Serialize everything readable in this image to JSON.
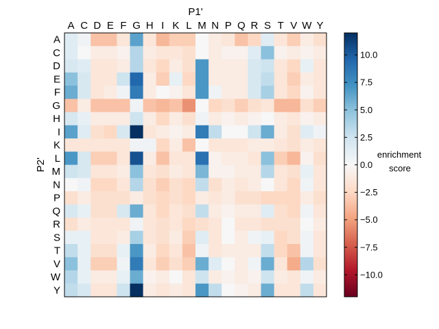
{
  "chart_data": {
    "type": "heatmap",
    "xlabel": "P1'",
    "ylabel": "P2'",
    "x_categories": [
      "A",
      "C",
      "D",
      "E",
      "F",
      "G",
      "H",
      "I",
      "K",
      "L",
      "M",
      "N",
      "P",
      "Q",
      "R",
      "S",
      "T",
      "V",
      "W",
      "Y"
    ],
    "y_categories": [
      "A",
      "C",
      "D",
      "E",
      "F",
      "G",
      "H",
      "I",
      "K",
      "L",
      "M",
      "N",
      "P",
      "Q",
      "R",
      "S",
      "T",
      "V",
      "W",
      "Y"
    ],
    "colorbar": {
      "label_line1": "enrichment",
      "label_line2": "score",
      "range": [
        -12,
        12
      ],
      "ticks": [
        10.0,
        7.5,
        5.0,
        2.5,
        0.0,
        -2.5,
        -5.0,
        -7.5,
        -10.0
      ],
      "tick_labels": [
        "10.0",
        "7.5",
        "5.0",
        "2.5",
        "0.0",
        "−2.5",
        "−5.0",
        "−7.5",
        "−10.0"
      ],
      "colormap": "RdBu_r"
    },
    "values": [
      [
        1.5,
        0.5,
        -3.5,
        -3.5,
        -1.5,
        6.5,
        -1.5,
        -4.0,
        -3.0,
        -3.0,
        0.0,
        -1.0,
        -1.5,
        -3.5,
        -2.5,
        1.5,
        -1.5,
        -3.0,
        -1.0,
        -2.0
      ],
      [
        1.5,
        0.0,
        -1.0,
        -1.0,
        -0.5,
        3.5,
        -1.0,
        -1.5,
        -1.5,
        -2.0,
        0.0,
        -1.0,
        -0.5,
        -0.5,
        1.5,
        5.0,
        -0.5,
        -1.0,
        -0.5,
        -1.0
      ],
      [
        2.0,
        1.5,
        -1.5,
        -1.5,
        -1.0,
        3.5,
        -1.5,
        -2.5,
        -1.0,
        -2.0,
        7.0,
        -1.0,
        -1.0,
        -1.0,
        2.0,
        2.5,
        -1.5,
        -2.5,
        1.0,
        -1.5
      ],
      [
        5.0,
        2.0,
        -1.5,
        -1.5,
        2.5,
        9.5,
        -1.0,
        -3.0,
        1.0,
        -2.5,
        7.0,
        -1.0,
        -1.0,
        -1.0,
        2.0,
        3.0,
        -1.5,
        -3.0,
        -1.0,
        -1.5
      ],
      [
        6.0,
        2.0,
        -1.5,
        -1.0,
        0.5,
        8.5,
        -1.0,
        0.0,
        -0.5,
        -1.5,
        7.0,
        0.5,
        -1.0,
        -1.0,
        2.0,
        4.0,
        -1.5,
        -2.5,
        -0.5,
        -1.5
      ],
      [
        -3.5,
        -1.0,
        -3.5,
        -3.5,
        -3.5,
        0.5,
        -3.5,
        -4.0,
        -3.5,
        -5.5,
        0.0,
        -2.5,
        -2.0,
        -3.0,
        -2.0,
        -1.5,
        -4.0,
        -4.0,
        -2.0,
        -3.0
      ],
      [
        2.0,
        1.0,
        -1.0,
        -1.0,
        -1.0,
        2.5,
        -1.0,
        -2.5,
        -1.0,
        -2.0,
        0.5,
        -1.0,
        -0.5,
        -1.0,
        -0.5,
        0.0,
        -1.0,
        -1.5,
        -0.5,
        -1.0
      ],
      [
        6.5,
        1.5,
        -2.0,
        -2.5,
        2.0,
        12.0,
        -1.5,
        -1.0,
        -0.5,
        -1.0,
        8.5,
        3.0,
        0.0,
        0.0,
        2.5,
        6.0,
        -1.0,
        -2.0,
        1.5,
        0.5
      ],
      [
        -1.5,
        -1.5,
        -1.5,
        -1.5,
        -1.5,
        0.5,
        0.5,
        -2.5,
        -1.0,
        -3.5,
        0.0,
        -1.5,
        -1.5,
        -1.5,
        -1.0,
        -1.0,
        -1.5,
        -2.0,
        -1.0,
        -1.5
      ],
      [
        7.0,
        2.0,
        -3.0,
        -3.0,
        -1.5,
        10.5,
        -1.0,
        -3.5,
        -1.5,
        -1.5,
        9.0,
        -0.5,
        -1.0,
        -1.0,
        -1.5,
        5.0,
        -3.0,
        -4.0,
        -0.5,
        -2.0
      ],
      [
        2.5,
        2.0,
        -1.5,
        -1.5,
        -1.0,
        5.0,
        -1.5,
        -2.0,
        -1.0,
        -1.5,
        5.5,
        -0.5,
        -0.5,
        -1.0,
        -1.0,
        3.5,
        -1.5,
        -2.0,
        1.0,
        -1.5
      ],
      [
        0.0,
        0.5,
        -2.5,
        -2.5,
        -1.5,
        3.5,
        -2.0,
        -3.0,
        -2.0,
        -2.5,
        3.0,
        -2.0,
        -1.0,
        -1.5,
        -1.0,
        0.0,
        -1.5,
        -2.5,
        0.5,
        -1.5
      ],
      [
        -2.0,
        -1.0,
        -2.0,
        -2.0,
        -2.0,
        -1.0,
        -2.0,
        -2.5,
        -2.0,
        -2.5,
        -1.0,
        -1.5,
        -1.0,
        -2.0,
        -2.0,
        -2.5,
        -2.5,
        -2.5,
        -1.0,
        -2.0
      ],
      [
        2.0,
        1.0,
        -2.0,
        -2.0,
        2.0,
        6.0,
        -1.5,
        -2.5,
        -1.5,
        -2.0,
        3.0,
        -1.0,
        -0.5,
        -1.0,
        -1.0,
        1.5,
        -2.0,
        -2.5,
        0.5,
        -1.5
      ],
      [
        -2.0,
        -1.0,
        -1.5,
        -1.5,
        -1.5,
        0.5,
        -1.5,
        -2.0,
        -1.5,
        -2.5,
        -2.0,
        -1.5,
        0.0,
        -1.5,
        -1.5,
        -2.0,
        -2.0,
        -2.0,
        0.0,
        -1.0
      ],
      [
        1.0,
        1.0,
        -1.5,
        -1.5,
        -1.0,
        4.0,
        -1.5,
        -2.0,
        -1.0,
        -3.0,
        1.5,
        -1.5,
        0.0,
        -1.0,
        0.5,
        1.0,
        -2.5,
        -2.0,
        0.5,
        -1.5
      ],
      [
        3.0,
        1.0,
        -2.0,
        -2.0,
        1.0,
        7.0,
        -1.0,
        -2.5,
        -1.5,
        -3.5,
        0.5,
        -1.5,
        -1.0,
        -1.0,
        -1.0,
        3.0,
        -2.5,
        -3.5,
        0.5,
        -1.5
      ],
      [
        5.0,
        1.0,
        -3.0,
        -3.0,
        0.5,
        8.5,
        -1.5,
        -3.0,
        -2.0,
        -3.0,
        6.0,
        1.5,
        0.0,
        -1.0,
        0.5,
        6.0,
        -1.5,
        -4.5,
        3.5,
        -2.0
      ],
      [
        3.5,
        1.0,
        -1.0,
        -1.0,
        1.0,
        6.0,
        -0.5,
        -1.0,
        0.0,
        -1.5,
        2.5,
        -1.0,
        -0.5,
        -1.0,
        -0.5,
        2.5,
        -1.0,
        -1.5,
        0.5,
        -1.0
      ],
      [
        3.0,
        2.0,
        -1.5,
        -1.5,
        2.5,
        12.0,
        -1.0,
        -1.5,
        -1.0,
        -1.5,
        7.0,
        3.0,
        0.0,
        -0.5,
        -1.0,
        6.0,
        -1.5,
        -1.5,
        3.0,
        -1.5
      ]
    ]
  }
}
